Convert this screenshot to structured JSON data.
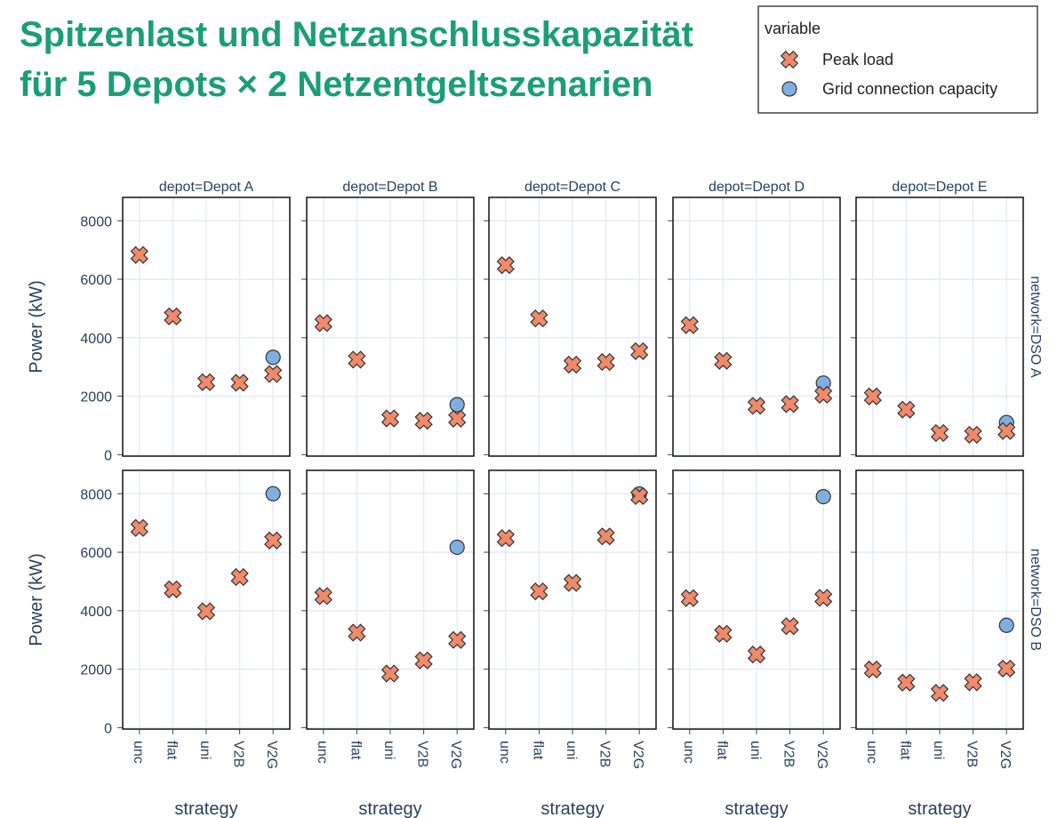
{
  "chart_data": {
    "type": "scatter",
    "title_lines": [
      "Spitzenlast und Netzanschlusskapazität",
      "für 5 Depots × 2 Netzentgeltszenarien"
    ],
    "legend_title": "variable",
    "x_label": "strategy",
    "y_label": "Power (kW)",
    "columns": [
      "depot=Depot A",
      "depot=Depot B",
      "depot=Depot C",
      "depot=Depot D",
      "depot=Depot E"
    ],
    "rows": [
      "network=DSO A",
      "network=DSO B"
    ],
    "categories": [
      "unc",
      "flat",
      "uni",
      "V2B",
      "V2G"
    ],
    "ylim": [
      -50,
      8800
    ],
    "yticks": [
      0,
      2000,
      4000,
      6000,
      8000
    ],
    "grid": true,
    "series": [
      {
        "name": "Peak load",
        "color": "#f08a6b",
        "marker": "x",
        "values": [
          [
            6830,
            4730,
            2480,
            2460,
            2760
          ],
          [
            4500,
            3250,
            1240,
            1160,
            1230
          ],
          [
            6480,
            4660,
            3080,
            3170,
            3540
          ],
          [
            4430,
            3210,
            1670,
            1730,
            2050
          ],
          [
            1990,
            1540,
            740,
            680,
            810
          ],
          [
            6830,
            4730,
            3980,
            5150,
            6400
          ],
          [
            4500,
            3250,
            1850,
            2300,
            3000
          ],
          [
            6480,
            4660,
            4950,
            6540,
            7920
          ],
          [
            4430,
            3210,
            2500,
            3470,
            4440
          ],
          [
            1990,
            1540,
            1190,
            1550,
            2020
          ]
        ]
      },
      {
        "name": "Grid connection capacity",
        "color": "#7fafe0",
        "marker": "circle",
        "values": [
          [
            null,
            null,
            null,
            null,
            3330
          ],
          [
            null,
            null,
            null,
            null,
            1710
          ],
          [
            null,
            null,
            null,
            null,
            null
          ],
          [
            null,
            null,
            null,
            null,
            2450
          ],
          [
            null,
            null,
            null,
            null,
            1100
          ],
          [
            null,
            null,
            null,
            null,
            8000
          ],
          [
            null,
            null,
            null,
            null,
            6170
          ],
          [
            null,
            null,
            null,
            null,
            7990
          ],
          [
            null,
            null,
            null,
            null,
            7900
          ],
          [
            null,
            null,
            null,
            null,
            3500
          ]
        ]
      }
    ]
  }
}
